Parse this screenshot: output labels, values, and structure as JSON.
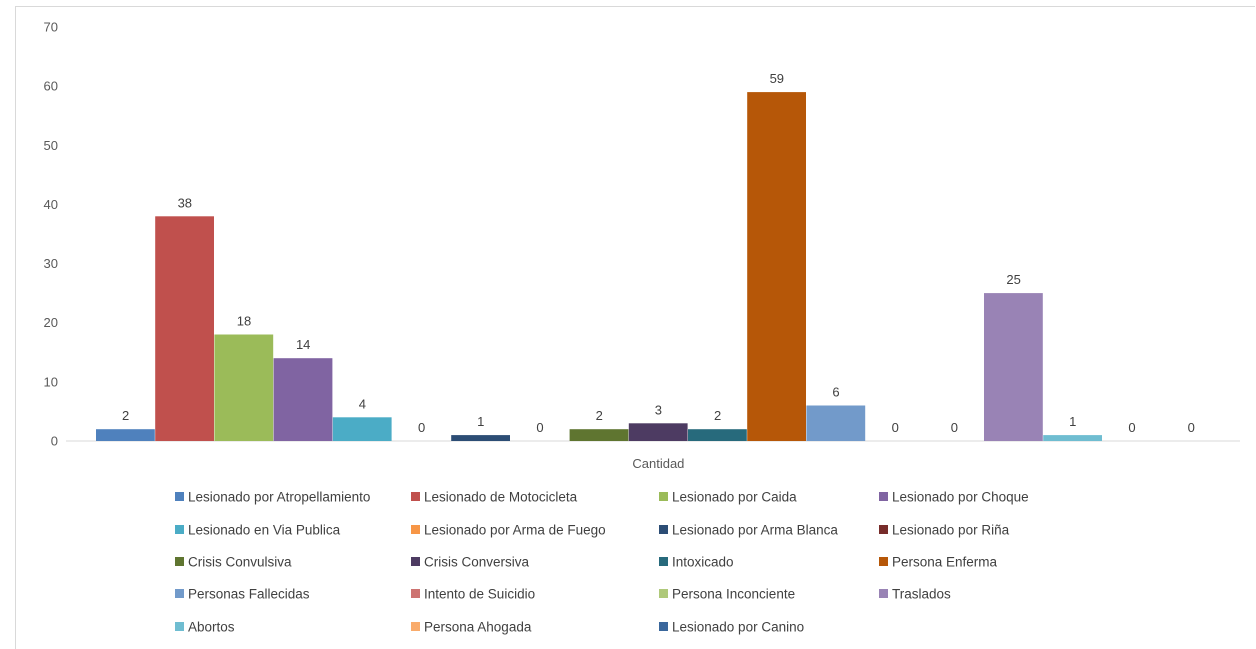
{
  "chart_data": {
    "type": "bar",
    "categories": [
      "Cantidad"
    ],
    "ylim": [
      0,
      70
    ],
    "yticks": [
      0,
      10,
      20,
      30,
      40,
      50,
      60,
      70
    ],
    "grid": false,
    "legend_position": "bottom",
    "data_labels": true,
    "series": [
      {
        "name": "Lesionado por Atropellamiento",
        "values": [
          2
        ],
        "color": "#4F81BD"
      },
      {
        "name": "Lesionado de Motocicleta",
        "values": [
          38
        ],
        "color": "#C0504D"
      },
      {
        "name": "Lesionado por Caida",
        "values": [
          18
        ],
        "color": "#9BBB59"
      },
      {
        "name": "Lesionado por Choque",
        "values": [
          14
        ],
        "color": "#8064A2"
      },
      {
        "name": "Lesionado en Via Publica",
        "values": [
          4
        ],
        "color": "#4BACC6"
      },
      {
        "name": "Lesionado por Arma de Fuego",
        "values": [
          0
        ],
        "color": "#F79646"
      },
      {
        "name": "Lesionado por Arma Blanca",
        "values": [
          1
        ],
        "color": "#2C4D75"
      },
      {
        "name": "Lesionado por Riña",
        "values": [
          0
        ],
        "color": "#772C2A"
      },
      {
        "name": "Crisis Convulsiva",
        "values": [
          2
        ],
        "color": "#5F7530"
      },
      {
        "name": "Crisis Conversiva",
        "values": [
          3
        ],
        "color": "#4D3B62"
      },
      {
        "name": "Intoxicado",
        "values": [
          2
        ],
        "color": "#276A7C"
      },
      {
        "name": "Persona Enferma",
        "values": [
          59
        ],
        "color": "#B65708"
      },
      {
        "name": "Personas Fallecidas",
        "values": [
          6
        ],
        "color": "#729ACA"
      },
      {
        "name": "Intento de Suicidio",
        "values": [
          0
        ],
        "color": "#CD7371"
      },
      {
        "name": "Persona Inconciente",
        "values": [
          0
        ],
        "color": "#AFC97A"
      },
      {
        "name": "Traslados",
        "values": [
          25
        ],
        "color": "#9983B5"
      },
      {
        "name": "Abortos",
        "values": [
          1
        ],
        "color": "#6FBDD1"
      },
      {
        "name": "Persona Ahogada",
        "values": [
          0
        ],
        "color": "#F9AB6B"
      },
      {
        "name": "Lesionado por Canino",
        "values": [
          0
        ],
        "color": "#3A679C"
      }
    ]
  }
}
